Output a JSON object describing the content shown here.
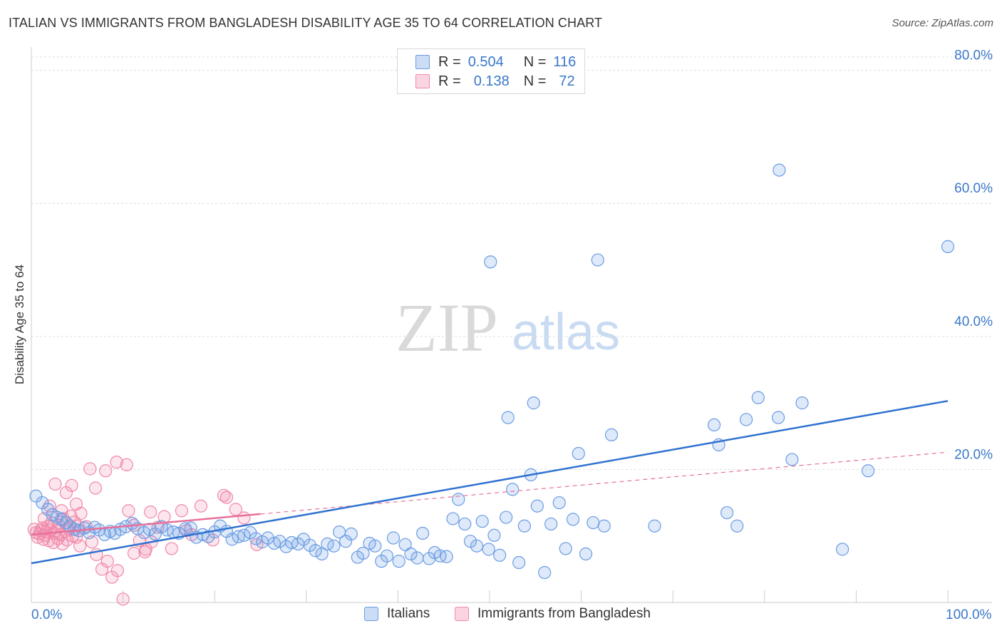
{
  "title": "ITALIAN VS IMMIGRANTS FROM BANGLADESH DISABILITY AGE 35 TO 64 CORRELATION CHART",
  "source": "Source: ZipAtlas.com",
  "watermark": {
    "zip": "ZIP",
    "atlas": "atlas"
  },
  "legend_top": [
    {
      "r_label": "R =",
      "r_value": "0.504",
      "n_label": "N =",
      "n_value": "116",
      "color": "#6b9de3"
    },
    {
      "r_label": "R =",
      "r_value": "0.138",
      "n_label": "N =",
      "n_value": "72",
      "color": "#f088aa"
    }
  ],
  "legend_bottom": [
    {
      "label": "Italians",
      "color": "#6b9de3"
    },
    {
      "label": "Immigrants from Bangladesh",
      "color": "#f088aa"
    }
  ],
  "colors": {
    "blue": "#6b9de3",
    "blue_line": "#2f72d0",
    "pink": "#f088aa",
    "pink_line": "#e8709a",
    "tick": "#3a78c9"
  },
  "chart_data": {
    "type": "scatter",
    "title": "ITALIAN VS IMMIGRANTS FROM BANGLADESH DISABILITY AGE 35 TO 64 CORRELATION CHART",
    "xlabel": "",
    "ylabel": "Disability Age 35 to 64",
    "xlim": [
      0,
      100
    ],
    "ylim": [
      0,
      82
    ],
    "x_tick_labels": {
      "min": "0.0%",
      "max": "100.0%"
    },
    "y_ticks": [
      {
        "value": 20,
        "label": "20.0%"
      },
      {
        "value": 40,
        "label": "40.0%"
      },
      {
        "value": 60,
        "label": "60.0%"
      },
      {
        "value": 80,
        "label": "80.0%"
      }
    ],
    "grid": "horizontal dashed",
    "series": [
      {
        "name": "Italians",
        "color": "#6b9de3",
        "r": 0.504,
        "n": 116,
        "trend": {
          "x": [
            0,
            100
          ],
          "y": [
            5.9,
            30.3
          ],
          "dashed_x": []
        },
        "points": [
          [
            0.5,
            16.0
          ],
          [
            1.2,
            15.0
          ],
          [
            1.8,
            14.0
          ],
          [
            2.3,
            13.2
          ],
          [
            2.8,
            12.8
          ],
          [
            3.3,
            12.5
          ],
          [
            3.8,
            12.0
          ],
          [
            4.2,
            11.5
          ],
          [
            4.7,
            11.0
          ],
          [
            5.2,
            10.8
          ],
          [
            5.8,
            11.2
          ],
          [
            6.3,
            10.5
          ],
          [
            6.9,
            11.3
          ],
          [
            7.4,
            10.9
          ],
          [
            8.0,
            10.2
          ],
          [
            8.6,
            10.7
          ],
          [
            9.1,
            10.4
          ],
          [
            9.7,
            11.0
          ],
          [
            10.3,
            11.4
          ],
          [
            11.0,
            11.9
          ],
          [
            11.6,
            11.1
          ],
          [
            12.3,
            10.5
          ],
          [
            12.9,
            11.0
          ],
          [
            13.5,
            10.3
          ],
          [
            14.2,
            11.4
          ],
          [
            14.8,
            10.9
          ],
          [
            15.5,
            10.6
          ],
          [
            16.1,
            10.4
          ],
          [
            16.8,
            11.1
          ],
          [
            17.4,
            11.2
          ],
          [
            18.0,
            9.8
          ],
          [
            18.7,
            10.2
          ],
          [
            19.3,
            9.9
          ],
          [
            20.0,
            10.6
          ],
          [
            20.6,
            11.5
          ],
          [
            21.3,
            10.7
          ],
          [
            21.9,
            9.5
          ],
          [
            22.6,
            9.9
          ],
          [
            23.2,
            10.1
          ],
          [
            23.9,
            10.5
          ],
          [
            24.5,
            9.6
          ],
          [
            25.2,
            9.1
          ],
          [
            25.8,
            9.7
          ],
          [
            26.5,
            8.9
          ],
          [
            27.1,
            9.2
          ],
          [
            27.8,
            8.4
          ],
          [
            28.4,
            9.0
          ],
          [
            29.1,
            8.8
          ],
          [
            29.7,
            9.5
          ],
          [
            30.4,
            8.6
          ],
          [
            31.0,
            7.8
          ],
          [
            31.7,
            7.3
          ],
          [
            32.3,
            8.8
          ],
          [
            33.0,
            8.5
          ],
          [
            33.6,
            10.6
          ],
          [
            34.3,
            9.2
          ],
          [
            34.9,
            10.3
          ],
          [
            35.6,
            6.8
          ],
          [
            36.2,
            7.4
          ],
          [
            36.9,
            8.9
          ],
          [
            37.5,
            8.5
          ],
          [
            38.2,
            6.2
          ],
          [
            38.8,
            7.0
          ],
          [
            39.5,
            9.7
          ],
          [
            40.1,
            6.2
          ],
          [
            40.8,
            8.7
          ],
          [
            41.4,
            7.3
          ],
          [
            42.1,
            6.7
          ],
          [
            42.7,
            10.4
          ],
          [
            43.4,
            6.6
          ],
          [
            44.0,
            7.5
          ],
          [
            44.6,
            7.0
          ],
          [
            45.3,
            6.9
          ],
          [
            46.0,
            12.6
          ],
          [
            46.6,
            15.5
          ],
          [
            47.3,
            11.8
          ],
          [
            47.9,
            9.2
          ],
          [
            48.6,
            8.5
          ],
          [
            49.2,
            12.2
          ],
          [
            49.9,
            8.0
          ],
          [
            50.5,
            10.1
          ],
          [
            51.1,
            7.1
          ],
          [
            51.8,
            12.8
          ],
          [
            52.5,
            17.0
          ],
          [
            53.2,
            6.0
          ],
          [
            53.8,
            11.5
          ],
          [
            54.5,
            19.2
          ],
          [
            55.2,
            14.5
          ],
          [
            56.0,
            4.5
          ],
          [
            56.7,
            11.8
          ],
          [
            57.6,
            15.0
          ],
          [
            58.3,
            8.1
          ],
          [
            59.1,
            12.5
          ],
          [
            59.7,
            22.4
          ],
          [
            60.5,
            7.3
          ],
          [
            61.3,
            12.0
          ],
          [
            62.5,
            11.5
          ],
          [
            63.3,
            25.2
          ],
          [
            68.0,
            11.5
          ],
          [
            74.5,
            26.7
          ],
          [
            75.0,
            23.7
          ],
          [
            75.9,
            13.5
          ],
          [
            77.0,
            11.5
          ],
          [
            78.0,
            27.5
          ],
          [
            79.3,
            30.8
          ],
          [
            81.5,
            27.8
          ],
          [
            83.0,
            21.5
          ],
          [
            84.1,
            30.0
          ],
          [
            88.5,
            8.0
          ],
          [
            91.3,
            19.8
          ],
          [
            100,
            53.5
          ],
          [
            50.1,
            51.2
          ],
          [
            61.8,
            51.5
          ],
          [
            81.6,
            65.0
          ],
          [
            54.8,
            30.0
          ],
          [
            52.0,
            27.8
          ]
        ]
      },
      {
        "name": "Immigrants from Bangladesh",
        "color": "#f088aa",
        "r": 0.138,
        "n": 72,
        "trend": {
          "x": [
            0,
            25
          ],
          "y": [
            10.2,
            13.3
          ],
          "dashed_x": [
            25,
            100
          ]
        },
        "points": [
          [
            0.3,
            11.0
          ],
          [
            0.5,
            10.5
          ],
          [
            0.7,
            9.8
          ],
          [
            0.9,
            10.3
          ],
          [
            1.0,
            10.8
          ],
          [
            1.2,
            11.2
          ],
          [
            1.3,
            9.5
          ],
          [
            1.5,
            10.1
          ],
          [
            1.6,
            10.6
          ],
          [
            1.8,
            11.4
          ],
          [
            1.9,
            9.3
          ],
          [
            2.1,
            10.9
          ],
          [
            2.2,
            12.0
          ],
          [
            2.4,
            9.0
          ],
          [
            2.5,
            10.4
          ],
          [
            2.7,
            10.8
          ],
          [
            2.9,
            9.6
          ],
          [
            3.0,
            11.6
          ],
          [
            3.2,
            10.2
          ],
          [
            3.4,
            8.8
          ],
          [
            3.5,
            12.6
          ],
          [
            3.7,
            10.7
          ],
          [
            3.9,
            9.4
          ],
          [
            4.1,
            11.0
          ],
          [
            4.3,
            13.0
          ],
          [
            4.5,
            10.0
          ],
          [
            4.7,
            12.1
          ],
          [
            4.9,
            9.8
          ],
          [
            5.1,
            11.5
          ],
          [
            5.3,
            8.5
          ],
          [
            1.4,
            12.6
          ],
          [
            2.0,
            14.5
          ],
          [
            2.6,
            17.8
          ],
          [
            3.3,
            13.8
          ],
          [
            3.8,
            16.5
          ],
          [
            4.4,
            17.6
          ],
          [
            4.9,
            14.8
          ],
          [
            5.4,
            13.4
          ],
          [
            6.0,
            11.4
          ],
          [
            6.6,
            9.1
          ],
          [
            7.1,
            7.2
          ],
          [
            7.7,
            5.0
          ],
          [
            8.3,
            6.2
          ],
          [
            8.8,
            3.8
          ],
          [
            9.4,
            4.8
          ],
          [
            10.0,
            0.5
          ],
          [
            10.6,
            13.8
          ],
          [
            11.2,
            11.6
          ],
          [
            11.8,
            9.3
          ],
          [
            12.4,
            7.6
          ],
          [
            13.1,
            9.1
          ],
          [
            13.8,
            11.3
          ],
          [
            14.5,
            12.9
          ],
          [
            15.3,
            8.1
          ],
          [
            16.4,
            13.8
          ],
          [
            17.5,
            10.2
          ],
          [
            18.5,
            14.5
          ],
          [
            19.8,
            9.4
          ],
          [
            21.3,
            15.8
          ],
          [
            22.3,
            14.0
          ],
          [
            23.2,
            12.7
          ],
          [
            24.6,
            8.7
          ],
          [
            6.4,
            20.1
          ],
          [
            7.0,
            17.2
          ],
          [
            8.1,
            19.8
          ],
          [
            9.3,
            21.1
          ],
          [
            10.4,
            20.7
          ],
          [
            11.2,
            7.4
          ],
          [
            12.5,
            8.0
          ],
          [
            13.0,
            13.6
          ],
          [
            16.9,
            10.8
          ],
          [
            21.0,
            16.1
          ]
        ]
      }
    ]
  }
}
